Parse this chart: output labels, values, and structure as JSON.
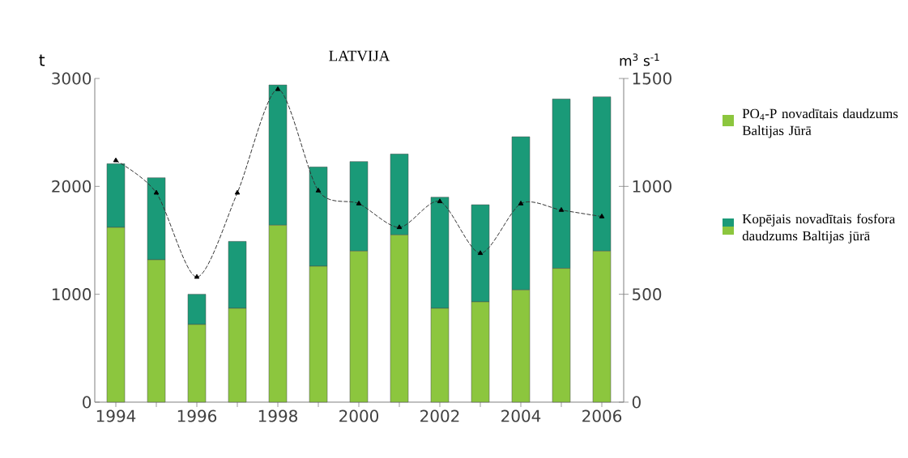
{
  "chart_data": {
    "type": "bar",
    "title": "LATVIJA",
    "ylabel": "t",
    "y2label": "m$^{3}$ s$^{-1}$",
    "categories": [
      "1994",
      null,
      "1996",
      null,
      "1998",
      null,
      "2000",
      null,
      "2002",
      null,
      "2004",
      null,
      "2006"
    ],
    "stacked": true,
    "series": [
      {
        "name": "PO$_{4}$-P novadītais daudzums Baltijas Jūrā",
        "color": "#8cc63e",
        "values": [
          1620,
          1320,
          720,
          870,
          1640,
          1260,
          1400,
          1550,
          870,
          930,
          1040,
          1240,
          1400
        ]
      },
      {
        "name": "Kopējais novadītais fosfora daudzums Baltijas jūrā",
        "color": "#1a9a78",
        "values": [
          590,
          760,
          280,
          620,
          1300,
          920,
          830,
          750,
          1030,
          900,
          1420,
          1570,
          1430
        ]
      },
      {
        "type": "line",
        "axis": "y2",
        "color": "#333333",
        "values": [
          1120,
          970,
          580,
          970,
          1450,
          980,
          920,
          810,
          930,
          690,
          920,
          890,
          860
        ]
      }
    ],
    "ylim": [
      0,
      3000
    ],
    "yticks": [
      0,
      1000,
      2000,
      3000
    ],
    "y2lim": [
      0,
      1500
    ],
    "y2ticks": [
      0,
      500,
      1000,
      1500
    ],
    "marker": "triangle",
    "line_style": "dashed",
    "legend": "right",
    "grid": false
  }
}
